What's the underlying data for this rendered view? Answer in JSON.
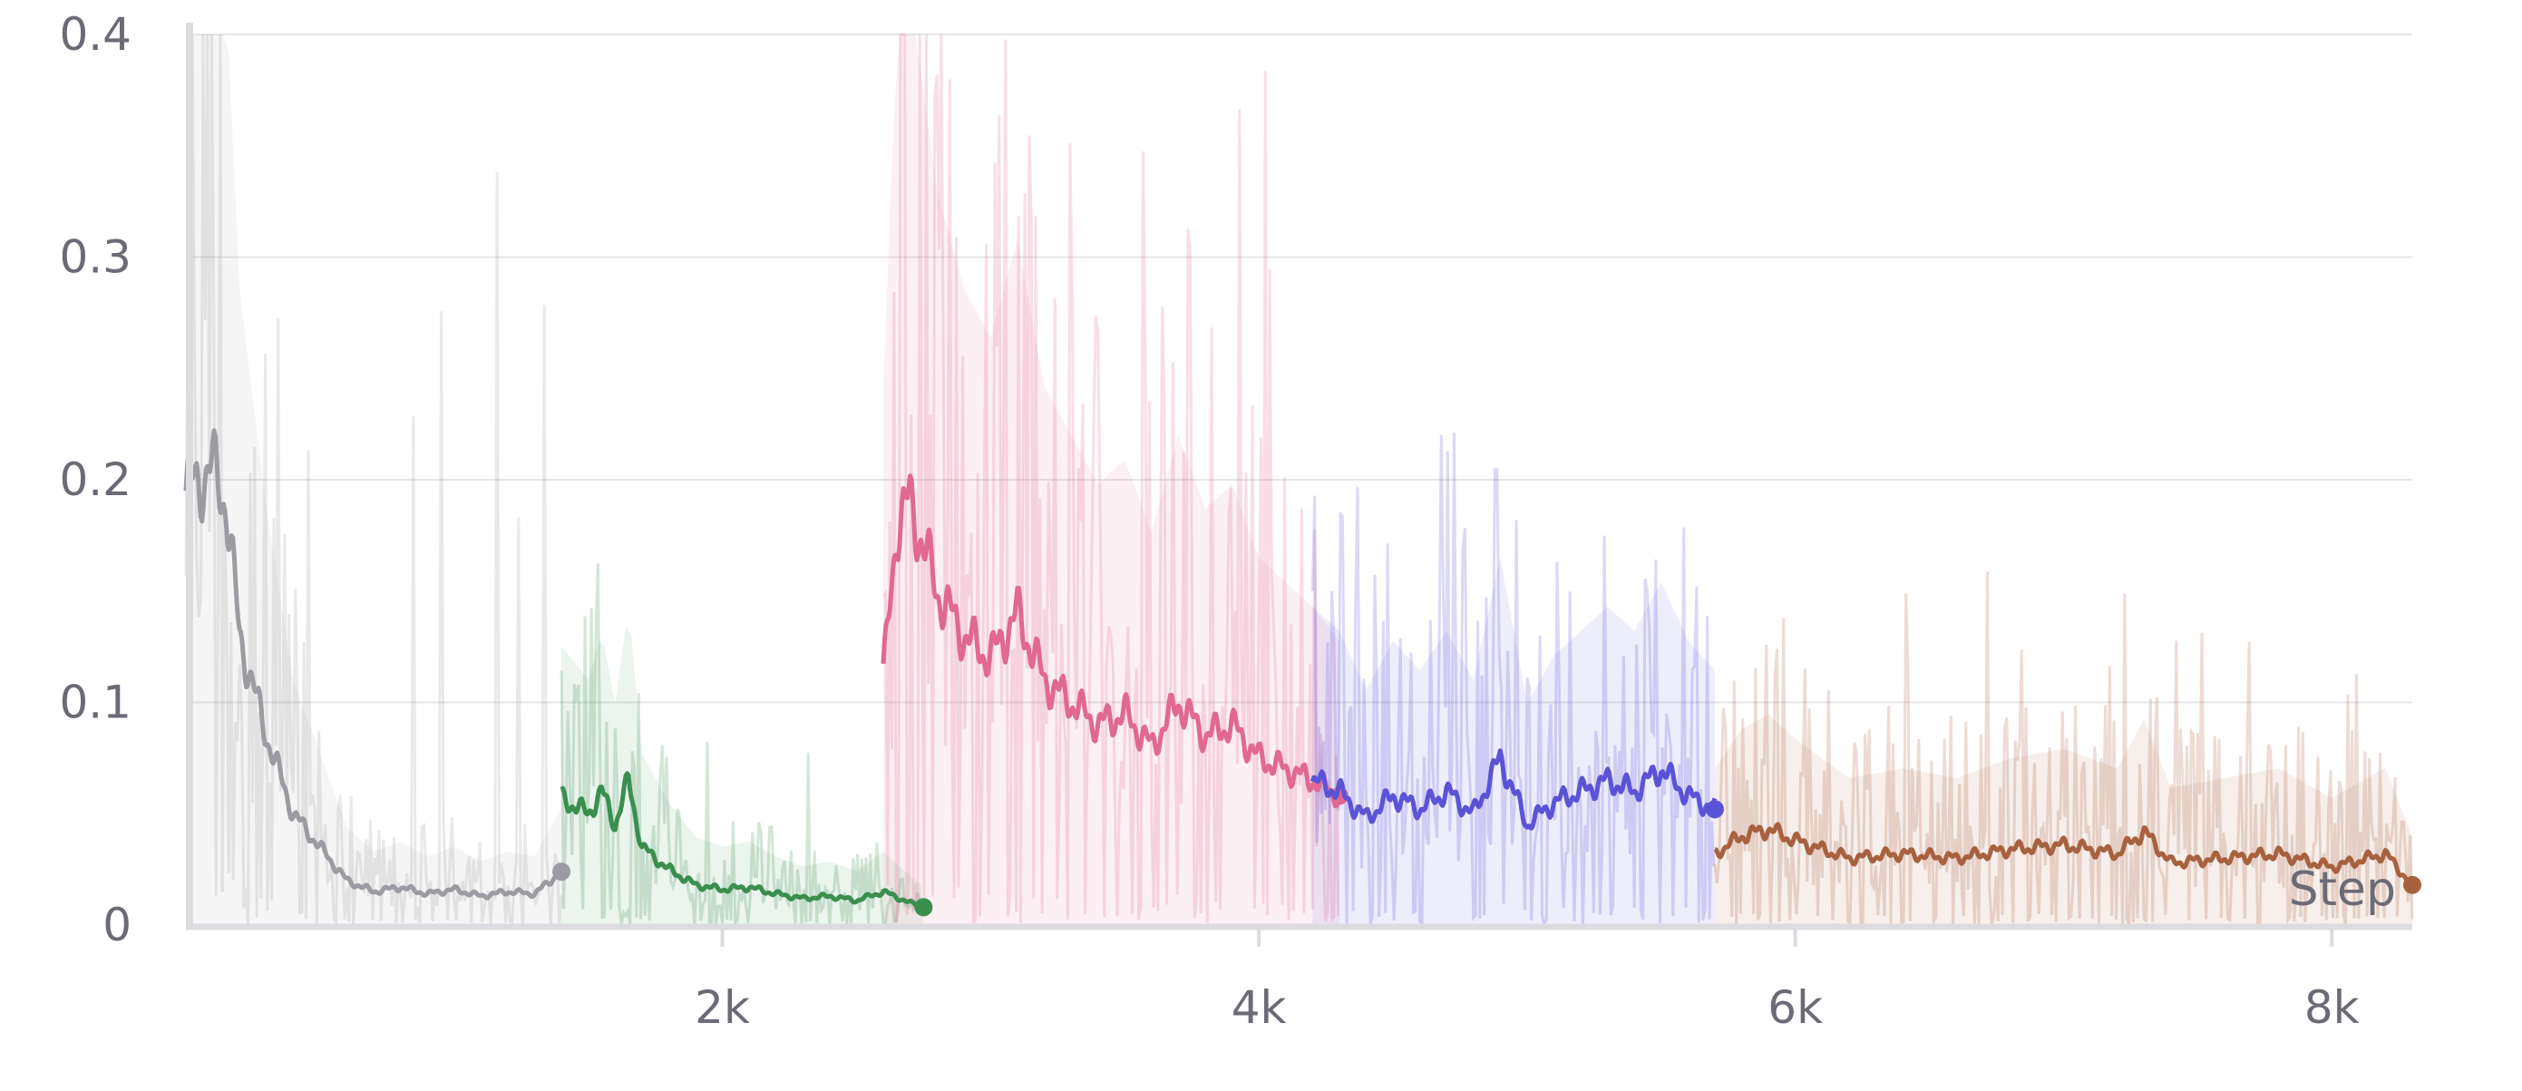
{
  "chart_data": {
    "type": "line",
    "title": "",
    "xlabel": "Step",
    "ylabel": "",
    "xlim": [
      0,
      8300
    ],
    "ylim": [
      0,
      0.4
    ],
    "grid": true,
    "legend": "none",
    "x_ticks": [
      {
        "value": 2000,
        "label": "2k"
      },
      {
        "value": 4000,
        "label": "4k"
      },
      {
        "value": 6000,
        "label": "6k"
      },
      {
        "value": 8000,
        "label": "8k"
      }
    ],
    "y_ticks": [
      {
        "value": 0,
        "label": "0"
      },
      {
        "value": 0.1,
        "label": "0.1"
      },
      {
        "value": 0.2,
        "label": "0.2"
      },
      {
        "value": 0.3,
        "label": "0.3"
      },
      {
        "value": 0.4,
        "label": "0.4"
      }
    ],
    "series": [
      {
        "color": "#9a9ca1",
        "x": [
          0,
          50,
          100,
          150,
          200,
          300,
          400,
          500,
          600,
          700,
          800,
          900,
          1000,
          1100,
          1200,
          1300,
          1400
        ],
        "y": [
          0.195,
          0.2,
          0.205,
          0.19,
          0.13,
          0.085,
          0.05,
          0.035,
          0.02,
          0.015,
          0.017,
          0.014,
          0.016,
          0.013,
          0.015,
          0.014,
          0.024
        ],
        "noise_max": 0.34
      },
      {
        "color": "#3a8f4e",
        "x": [
          1400,
          1500,
          1550,
          1600,
          1650,
          1700,
          1800,
          1900,
          2000,
          2100,
          2200,
          2300,
          2400,
          2500,
          2600,
          2700,
          2750
        ],
        "y": [
          0.057,
          0.05,
          0.06,
          0.045,
          0.065,
          0.035,
          0.025,
          0.018,
          0.016,
          0.017,
          0.014,
          0.012,
          0.013,
          0.011,
          0.015,
          0.01,
          0.008
        ],
        "noise_max": 0.125
      },
      {
        "color": "#e06891",
        "x": [
          2600,
          2650,
          2700,
          2750,
          2800,
          2900,
          3000,
          3100,
          3200,
          3300,
          3400,
          3500,
          3600,
          3700,
          3800,
          3900,
          4000,
          4100,
          4200,
          4300
        ],
        "y": [
          0.11,
          0.18,
          0.19,
          0.17,
          0.15,
          0.13,
          0.12,
          0.14,
          0.11,
          0.1,
          0.09,
          0.095,
          0.08,
          0.1,
          0.085,
          0.09,
          0.075,
          0.07,
          0.065,
          0.058
        ],
        "noise_max": 0.4
      },
      {
        "color": "#5b53d6",
        "x": [
          4200,
          4300,
          4400,
          4500,
          4600,
          4700,
          4800,
          4900,
          5000,
          5100,
          5200,
          5300,
          5400,
          5500,
          5600,
          5700
        ],
        "y": [
          0.065,
          0.06,
          0.048,
          0.058,
          0.052,
          0.06,
          0.05,
          0.075,
          0.045,
          0.055,
          0.06,
          0.065,
          0.06,
          0.07,
          0.058,
          0.052
        ],
        "noise_max": 0.25
      },
      {
        "color": "#a8613f",
        "x": [
          5700,
          5800,
          5900,
          6000,
          6200,
          6400,
          6600,
          6800,
          7000,
          7200,
          7300,
          7400,
          7600,
          7800,
          8000,
          8200,
          8300
        ],
        "y": [
          0.032,
          0.04,
          0.043,
          0.038,
          0.03,
          0.032,
          0.03,
          0.034,
          0.036,
          0.032,
          0.042,
          0.028,
          0.03,
          0.032,
          0.026,
          0.032,
          0.018
        ],
        "noise_max": 0.16
      }
    ]
  }
}
